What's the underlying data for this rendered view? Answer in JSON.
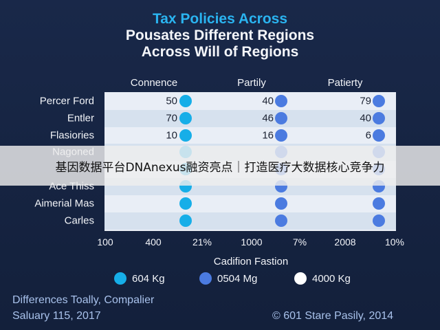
{
  "chart_data": {
    "type": "table",
    "title": [
      "Tax Policies Across",
      "Pousates Different Regions",
      "Across Will of Regions"
    ],
    "columns": [
      "Connence",
      "Partily",
      "Patierty"
    ],
    "rows": [
      {
        "label": "Percer Ford",
        "values": [
          "50",
          "40",
          "79"
        ]
      },
      {
        "label": "Entler",
        "values": [
          "70",
          "46",
          "40"
        ]
      },
      {
        "label": "Flasiories",
        "values": [
          "10",
          "16",
          "6"
        ]
      },
      {
        "label": "Nagoned",
        "values": [
          "",
          "",
          ""
        ]
      },
      {
        "label": "",
        "values": [
          "",
          "",
          ""
        ]
      },
      {
        "label": "Ace Thiss",
        "values": [
          "",
          "",
          ""
        ]
      },
      {
        "label": "Aimerial Mas",
        "values": [
          "",
          "",
          ""
        ]
      },
      {
        "label": "Carles",
        "values": [
          "",
          "",
          ""
        ]
      }
    ],
    "x_ticks": [
      "100",
      "400",
      "21%",
      "1000",
      "7%",
      "2008",
      "10%"
    ],
    "xlabel": "Cadifion Fastion",
    "legend": [
      {
        "label": "604 Kg",
        "color": "#16aee8"
      },
      {
        "label": "0504 Mg",
        "color": "#4b7be0"
      },
      {
        "label": "4000 Kg",
        "color": "#ffffff"
      }
    ],
    "legend_position": "bottom"
  },
  "footer": {
    "line1": "Differences Toally, Compalier",
    "line2": "Saluary 115, 2017",
    "credit": "© 601 Stare Pasily, 2014"
  },
  "overlay": {
    "banner_text": "基因数据平台DNAnexus融资亮点｜打造医疗大数据核心竞争力"
  },
  "colors": {
    "background": "#16233f",
    "title_accent": "#2ab4f0",
    "column_1_dot": "#16aee8",
    "column_2_dot": "#4b7be0",
    "column_3_dot": "#4b7be0"
  }
}
